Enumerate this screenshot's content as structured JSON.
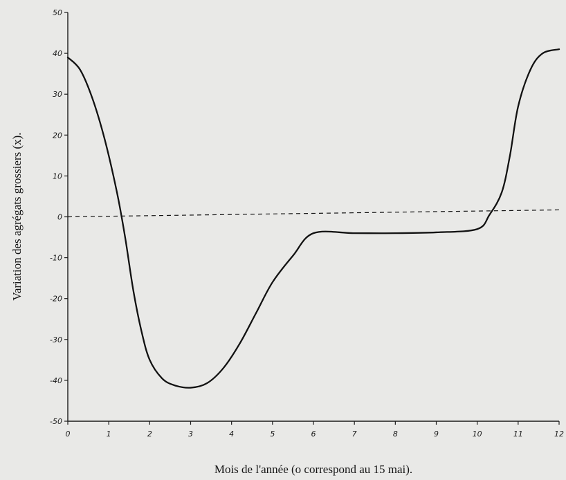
{
  "chart_data": {
    "type": "line",
    "title": "",
    "xlabel": "Mois de l'année (o correspond au 15 mai).",
    "ylabel": "Variation des agrégats grossiers (x).",
    "xlim": [
      0,
      12
    ],
    "ylim": [
      -50,
      50
    ],
    "x_ticks": [
      "0",
      "1",
      "2",
      "3",
      "4",
      "5",
      "6",
      "7",
      "8",
      "9",
      "10",
      "11",
      "12"
    ],
    "y_ticks": [
      "50",
      "40",
      "30",
      "20",
      "10",
      "0",
      "-10",
      "-20",
      "-30",
      "-40",
      "-50"
    ],
    "grid": false,
    "series": [
      {
        "style": "solid",
        "x": [
          0,
          0.3,
          0.6,
          0.9,
          1.2,
          1.4,
          1.6,
          1.8,
          2.0,
          2.3,
          2.6,
          3.0,
          3.4,
          3.8,
          4.2,
          4.6,
          5.0,
          5.5,
          6.0,
          7.0,
          8.0,
          9.0,
          10.0,
          10.3,
          10.6,
          10.8,
          11.0,
          11.3,
          11.6,
          12.0
        ],
        "y": [
          39,
          36,
          29,
          19,
          6,
          -5,
          -18,
          -28,
          -35,
          -39.5,
          -41.2,
          -41.8,
          -40.7,
          -37,
          -31,
          -23.5,
          -16,
          -9.5,
          -4,
          -4,
          -4,
          -3.8,
          -3,
          0.5,
          6,
          15,
          27,
          36,
          40,
          41
        ]
      },
      {
        "style": "dashed",
        "x": [
          0,
          12
        ],
        "y": [
          0,
          1.7
        ]
      }
    ],
    "colors": {
      "line": "#121212",
      "axis": "#1a1a1a",
      "background": "#e9e9e7"
    }
  }
}
